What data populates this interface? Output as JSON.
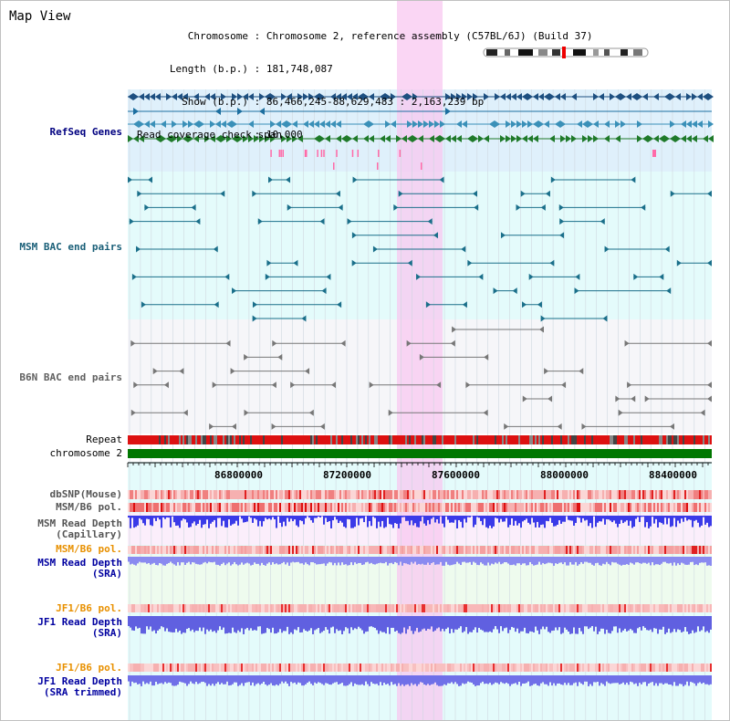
{
  "header": {
    "title": "Map View",
    "info": [
      {
        "key": "Chromosome",
        "value": "Chromosome 2, reference assembly (C57BL/6J) (Build 37)"
      },
      {
        "key": "Length (b.p.)",
        "value": "181,748,087"
      },
      {
        "key": "Show (b.p.)",
        "value": "86,466,245-88,629,483 : 2,163,239 bp"
      },
      {
        "key": "Read coverage check span",
        "value": "10,000"
      }
    ]
  },
  "colors": {
    "refseq_bg": "#dff0fb",
    "bac_bg": "#e4fbfb",
    "b6n_bg": "#f4f4f8",
    "highlight": "#f8c8f0",
    "repeat": "#dd1111",
    "chromosome": "#007700",
    "depth_blue": "#3a3ae8",
    "depth_light": "#8a8af0",
    "snp_red": "#f08080"
  },
  "tracks": {
    "refseq": "RefSeq Genes",
    "msm_bac": "MSM BAC end pairs",
    "b6n_bac": "B6N BAC end pairs",
    "repeat": "Repeat",
    "chromosome": "chromosome 2",
    "dbsnp": "dbSNP(Mouse)",
    "msm_b6_pol": "MSM/B6 pol.",
    "msm_depth_cap_1": "MSM Read Depth",
    "msm_depth_cap_2": "(Capillary)",
    "msm_b6_pol_sra": "MSM/B6 pol.",
    "msm_depth_sra_1": "MSM Read Depth",
    "msm_depth_sra_2": "(SRA)",
    "jf1_b6_pol": "JF1/B6 pol.",
    "jf1_depth_sra_1": "JF1 Read Depth",
    "jf1_depth_sra_2": "(SRA)",
    "jf1_b6_pol_trim": "JF1/B6 pol.",
    "jf1_depth_trim_1": "JF1 Read Depth",
    "jf1_depth_trim_2": "(SRA trimmed)"
  },
  "ruler": {
    "ticks": [
      "86800000",
      "87200000",
      "87600000",
      "88000000",
      "88400000"
    ]
  }
}
